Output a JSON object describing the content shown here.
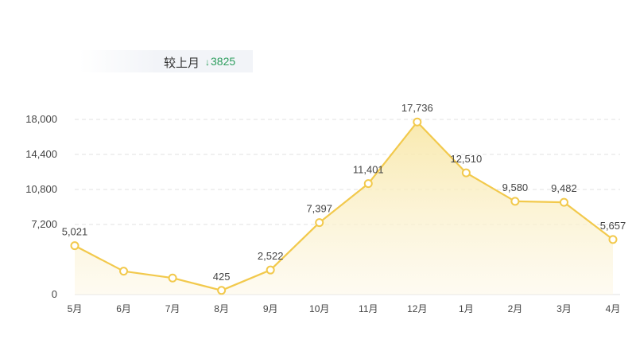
{
  "summary": {
    "label": "较上月",
    "arrow": "↓",
    "value": "3825"
  },
  "chart_data": {
    "type": "area",
    "categories": [
      "5月",
      "6月",
      "7月",
      "8月",
      "9月",
      "10月",
      "11月",
      "12月",
      "1月",
      "2月",
      "3月",
      "4月"
    ],
    "series": [
      {
        "values": [
          5021,
          2400,
          1700,
          425,
          2522,
          7397,
          11401,
          17736,
          12510,
          9580,
          9482,
          5657
        ],
        "data_labels": [
          "5,021",
          "",
          "",
          "425",
          "2,522",
          "7,397",
          "11,401",
          "17,736",
          "12,510",
          "9,580",
          "9,482",
          "5,657"
        ]
      }
    ],
    "yticks": [
      "0",
      "7,200",
      "10,800",
      "14,400",
      "18,000"
    ],
    "ytick_values": [
      0,
      7200,
      10800,
      14400,
      18000
    ],
    "ylim": [
      0,
      18000
    ],
    "grid": true,
    "colors": {
      "line": "#f2c94c",
      "fill_top": "#f8e7a6",
      "fill_bottom": "#fdf8e8",
      "marker_fill": "#ffffff",
      "grid": "#e0e0e0"
    }
  }
}
